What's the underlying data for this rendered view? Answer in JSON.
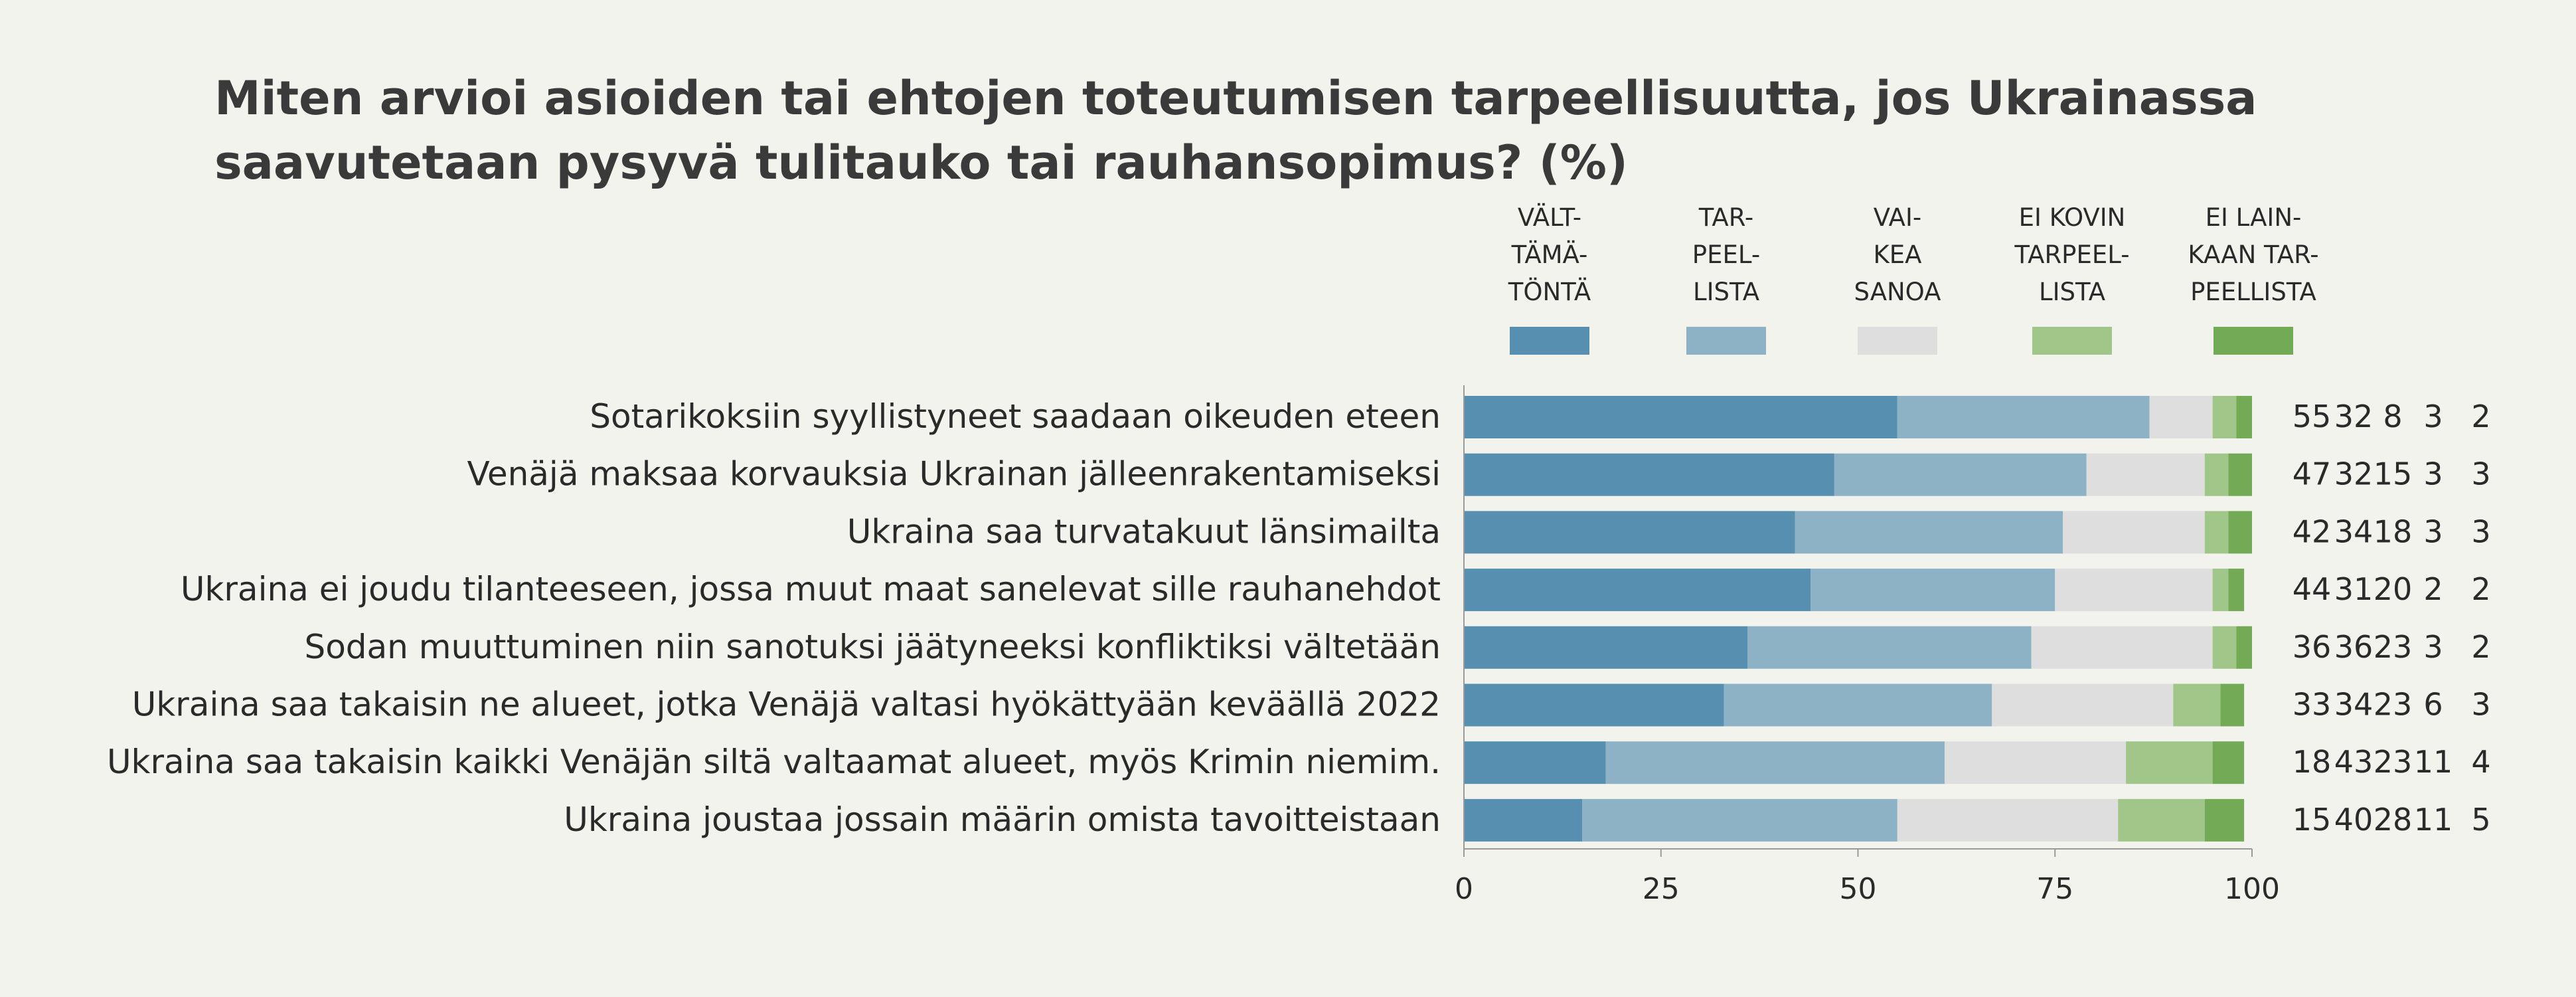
{
  "chart_data": {
    "type": "bar",
    "orientation": "horizontal",
    "stacked": true,
    "title": "Miten arvioi asioiden tai ehtojen toteutumisen tarpeellisuutta, jos Ukrainassa saavutetaan pysyvä tulitauko tai rauhansopimus? (%)",
    "xlim": [
      0,
      100
    ],
    "x_ticks": [
      0,
      25,
      50,
      75,
      100
    ],
    "grid": false,
    "legend_position": "top",
    "categories": [
      "Sotarikoksiin syyllistyneet saadaan oikeuden eteen",
      "Venäjä maksaa korvauksia Ukrainan jälleenrakentamiseksi",
      "Ukraina saa turvatakuut länsimailta",
      "Ukraina ei joudu tilanteeseen, jossa muut maat sanelevat sille rauhanehdot",
      "Sodan muuttuminen niin sanotuksi jäätyneeksi konfliktiksi vältetään",
      "Ukraina saa takaisin ne alueet, jotka Venäjä valtasi hyökättyään keväällä 2022",
      "Ukraina saa takaisin kaikki Venäjän siltä valtaamat alueet, myös Krimin niemim.",
      "Ukraina joustaa jossain määrin omista tavoitteistaan"
    ],
    "series": [
      {
        "name": "VÄLT-\nTÄMÄ-\nTÖNTÄ",
        "color": "#568fb0",
        "values": [
          55,
          47,
          42,
          44,
          36,
          33,
          18,
          15
        ]
      },
      {
        "name": "TAR-\nPEEL-\nLISTA",
        "color": "#8eb2c5",
        "values": [
          32,
          32,
          34,
          31,
          36,
          34,
          43,
          40
        ]
      },
      {
        "name": "VAI-\nKEA\nSANOA",
        "color": "#dedede",
        "values": [
          8,
          15,
          18,
          20,
          23,
          23,
          23,
          28
        ]
      },
      {
        "name": "EI KOVIN\nTARPEEL-\nLISTA",
        "color": "#a0c68a",
        "values": [
          3,
          3,
          3,
          2,
          3,
          6,
          11,
          11
        ]
      },
      {
        "name": "EI LAIN-\nKAAN TAR-\nPEELLISTA",
        "color": "#72aa55",
        "values": [
          2,
          3,
          3,
          2,
          2,
          3,
          4,
          5
        ]
      }
    ]
  }
}
